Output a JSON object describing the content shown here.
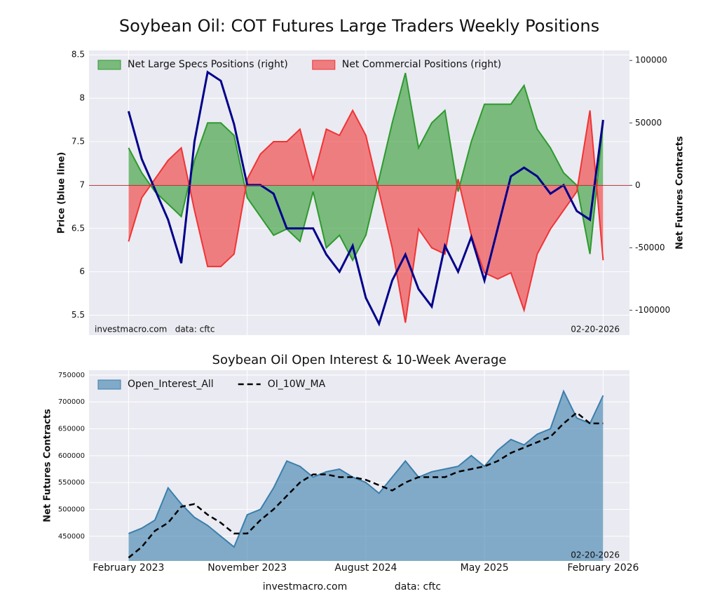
{
  "chart_data": [
    {
      "type": "area",
      "title": "Soybean Oil: COT Futures Large Traders Weekly Positions",
      "ylabel": "Price (blue line)",
      "y2label": "Net Futures Contracts",
      "x": [
        "2023-02",
        "2023-03",
        "2023-04",
        "2023-05",
        "2023-06",
        "2023-07",
        "2023-08",
        "2023-09",
        "2023-10",
        "2023-11",
        "2023-12",
        "2024-01",
        "2024-02",
        "2024-03",
        "2024-04",
        "2024-05",
        "2024-06",
        "2024-07",
        "2024-08",
        "2024-09",
        "2024-10",
        "2024-11",
        "2024-12",
        "2025-01",
        "2025-02",
        "2025-03",
        "2025-04",
        "2025-05",
        "2025-06",
        "2025-07",
        "2025-08",
        "2025-09",
        "2025-10",
        "2025-11",
        "2025-12",
        "2026-01",
        "2026-02"
      ],
      "xlim": [
        "2022-11",
        "2026-04"
      ],
      "ylim": [
        5.27,
        8.55
      ],
      "yticks": [
        5.5,
        6.0,
        6.5,
        7.0,
        7.5,
        8.0,
        8.5
      ],
      "y2lim": [
        -120000,
        108000
      ],
      "y2ticks": [
        -100000,
        -50000,
        0,
        50000,
        100000
      ],
      "grid": true,
      "legend": "upper left",
      "series": [
        {
          "kind": "line",
          "axis": "y",
          "color": "#00008b",
          "values": [
            7.85,
            7.3,
            6.95,
            6.6,
            6.1,
            7.5,
            8.3,
            8.2,
            7.7,
            7.0,
            7.0,
            6.9,
            6.5,
            6.5,
            6.5,
            6.2,
            6.0,
            6.3,
            5.7,
            5.4,
            5.9,
            6.2,
            5.8,
            5.6,
            6.3,
            6.0,
            6.4,
            5.9,
            6.5,
            7.1,
            7.2,
            7.1,
            6.9,
            7.0,
            6.7,
            6.6,
            7.75
          ]
        },
        {
          "kind": "area",
          "axis": "y2",
          "name": "Net Large Specs Positions (right)",
          "color": "#2e9a2e",
          "values": [
            30000,
            10000,
            -5000,
            -15000,
            -25000,
            20000,
            50000,
            50000,
            40000,
            -10000,
            -25000,
            -40000,
            -35000,
            -45000,
            -5000,
            -50000,
            -40000,
            -60000,
            -40000,
            5000,
            50000,
            90000,
            30000,
            50000,
            60000,
            -5000,
            35000,
            65000,
            65000,
            65000,
            80000,
            45000,
            30000,
            10000,
            0,
            -55000,
            50000
          ]
        },
        {
          "kind": "area",
          "axis": "y2",
          "name": "Net Commercial Positions (right)",
          "color": "#f03434",
          "values": [
            -45000,
            -10000,
            5000,
            20000,
            30000,
            -20000,
            -65000,
            -65000,
            -55000,
            5000,
            25000,
            35000,
            35000,
            45000,
            5000,
            45000,
            40000,
            60000,
            40000,
            -5000,
            -50000,
            -110000,
            -35000,
            -50000,
            -55000,
            5000,
            -40000,
            -70000,
            -75000,
            -70000,
            -100000,
            -55000,
            -35000,
            -20000,
            -5000,
            60000,
            -60000
          ]
        }
      ],
      "annotations": [
        "investmacro.com   data: cftc",
        "02-20-2026"
      ]
    },
    {
      "type": "area",
      "title": "Soybean Oil Open Interest & 10-Week Average",
      "ylabel": "Net Futures Contracts",
      "x": [
        "2023-02",
        "2023-03",
        "2023-04",
        "2023-05",
        "2023-06",
        "2023-07",
        "2023-08",
        "2023-09",
        "2023-10",
        "2023-11",
        "2023-12",
        "2024-01",
        "2024-02",
        "2024-03",
        "2024-04",
        "2024-05",
        "2024-06",
        "2024-07",
        "2024-08",
        "2024-09",
        "2024-10",
        "2024-11",
        "2024-12",
        "2025-01",
        "2025-02",
        "2025-03",
        "2025-04",
        "2025-05",
        "2025-06",
        "2025-07",
        "2025-08",
        "2025-09",
        "2025-10",
        "2025-11",
        "2025-12",
        "2026-01",
        "2026-02"
      ],
      "xlim": [
        "2022-11",
        "2026-04"
      ],
      "xticks": [
        {
          "value": "2023-02",
          "label": "February 2023"
        },
        {
          "value": "2023-11",
          "label": "November 2023"
        },
        {
          "value": "2024-08",
          "label": "August 2024"
        },
        {
          "value": "2025-05",
          "label": "May 2025"
        },
        {
          "value": "2026-02",
          "label": "February 2026"
        }
      ],
      "ylim": [
        404000,
        759000
      ],
      "yticks": [
        450000,
        500000,
        550000,
        600000,
        650000,
        700000,
        750000
      ],
      "grid": true,
      "legend": "upper left",
      "series": [
        {
          "kind": "area",
          "name": "Open_Interest_All",
          "color": "#3b7fab",
          "values": [
            455000,
            465000,
            480000,
            540000,
            510000,
            485000,
            470000,
            450000,
            430000,
            490000,
            500000,
            540000,
            590000,
            580000,
            560000,
            570000,
            575000,
            560000,
            550000,
            530000,
            560000,
            590000,
            560000,
            570000,
            575000,
            580000,
            600000,
            580000,
            610000,
            630000,
            620000,
            640000,
            650000,
            720000,
            670000,
            660000,
            712000
          ]
        },
        {
          "kind": "line",
          "dash": true,
          "name": "OI_10W_MA",
          "color": "#000000",
          "values": [
            410000,
            430000,
            460000,
            475000,
            505000,
            510000,
            490000,
            475000,
            455000,
            455000,
            480000,
            500000,
            525000,
            550000,
            565000,
            565000,
            560000,
            560000,
            555000,
            545000,
            535000,
            550000,
            560000,
            560000,
            560000,
            570000,
            575000,
            580000,
            590000,
            605000,
            615000,
            625000,
            635000,
            660000,
            680000,
            660000,
            660000
          ]
        }
      ],
      "annotations": [
        "02-20-2026"
      ]
    }
  ],
  "footer": {
    "site": "investmacro.com",
    "source": "data: cftc"
  }
}
